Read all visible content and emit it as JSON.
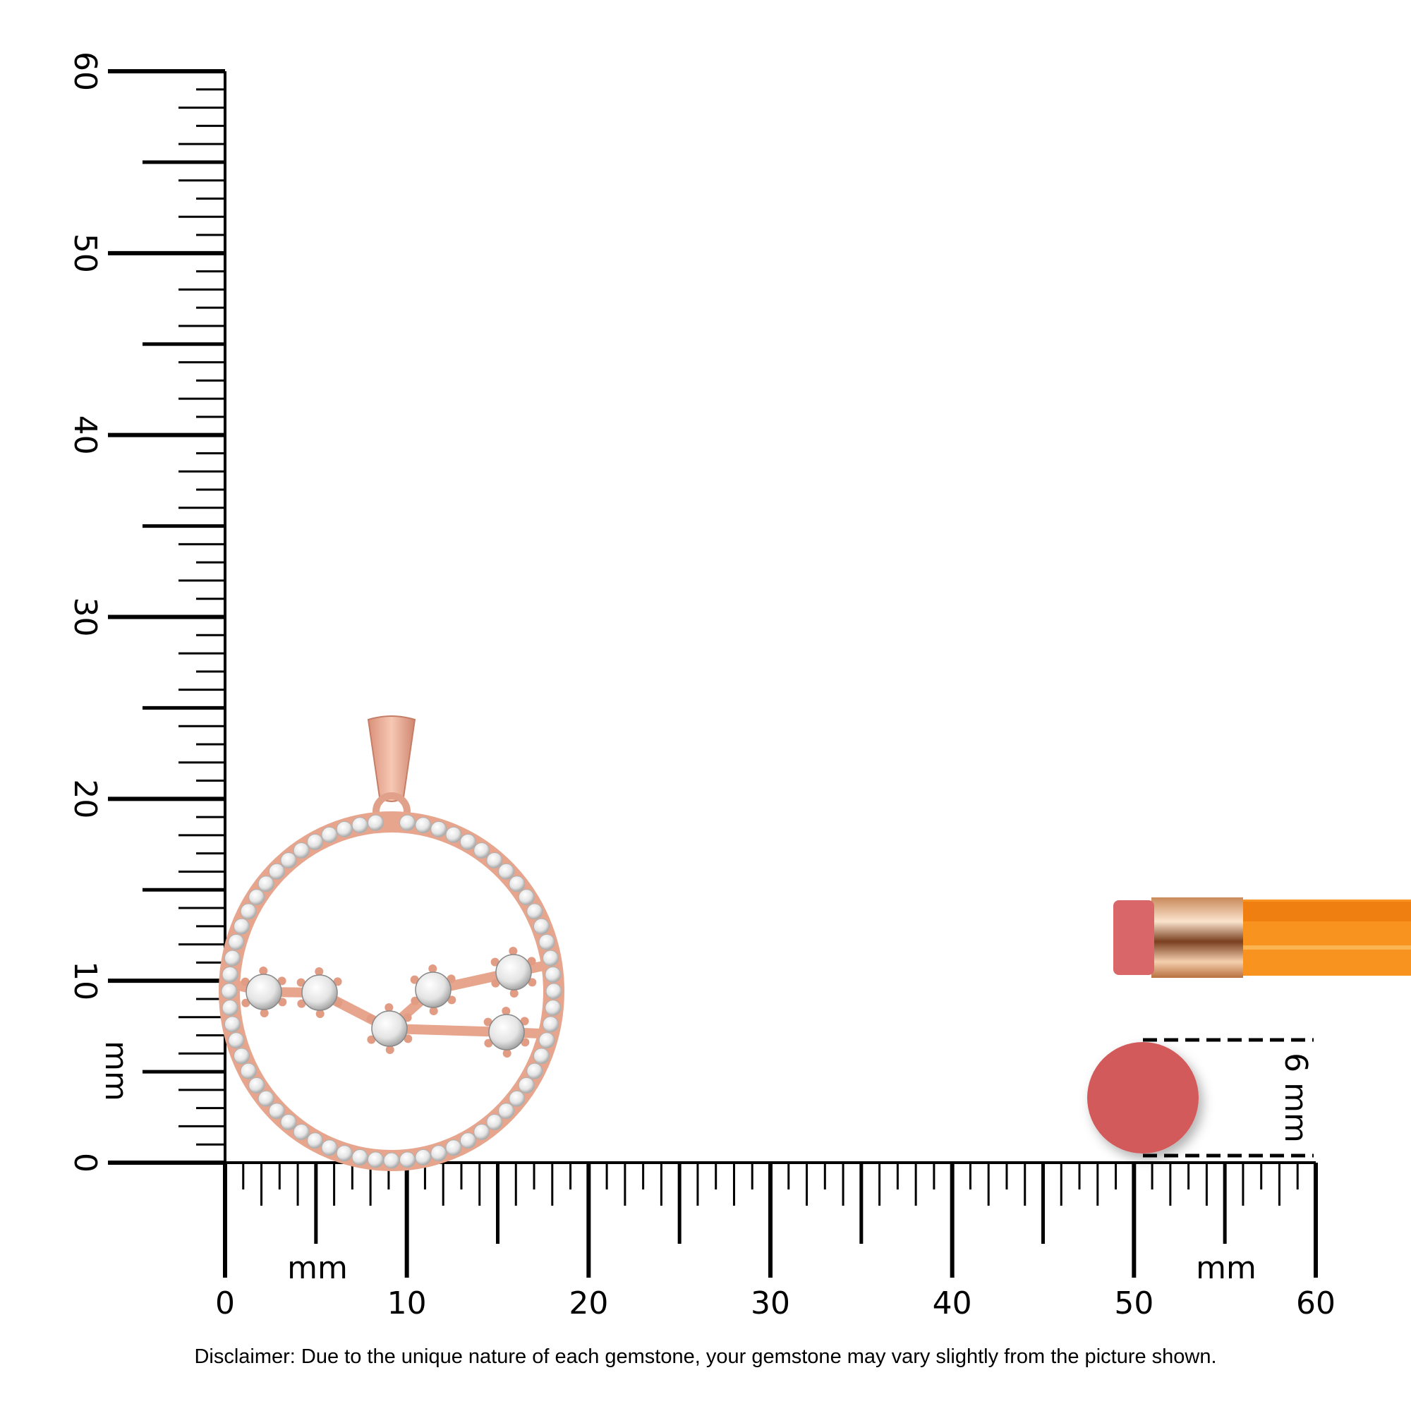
{
  "vertical_ruler": {
    "unit": "mm",
    "labels": [
      "0",
      "10",
      "20",
      "30",
      "40",
      "50",
      "60"
    ]
  },
  "horizontal_ruler": {
    "unit_left": "mm",
    "unit_right": "mm",
    "labels": [
      "0",
      "10",
      "20",
      "30",
      "40",
      "50",
      "60"
    ]
  },
  "reference": {
    "size_label": "6 mm",
    "eraser_color": "#d35a5a",
    "pencil_color": "#f7931e"
  },
  "product": {
    "metal_color": "#e8a98f",
    "stone_color": "#f2f2f2"
  },
  "disclaimer": "Disclaimer: Due to the unique nature of each gemstone, your gemstone may vary slightly from the picture shown."
}
